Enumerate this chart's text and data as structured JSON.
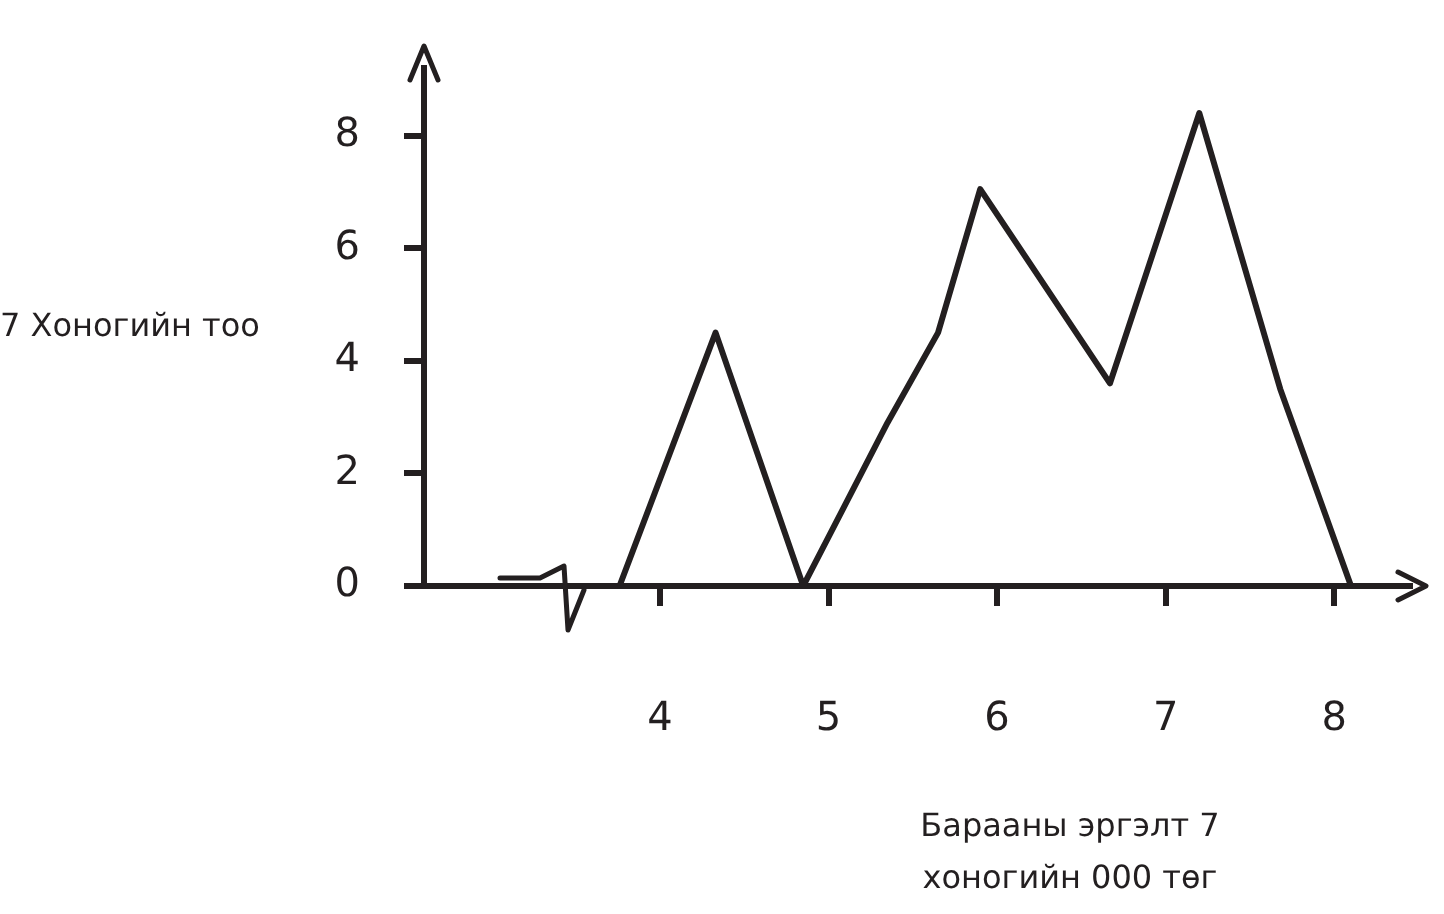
{
  "chart_data": {
    "type": "line",
    "xlabel": "Барааны эргэлт 7 хоногийн 000 төг",
    "ylabel": "7 Хоногийн тоо",
    "x": [
      3.76,
      4.33,
      4.85,
      5.35,
      5.65,
      5.9,
      6.67,
      7.2,
      7.68,
      8.1
    ],
    "series": [
      {
        "color": "#231f20",
        "values": [
          0,
          4.5,
          0,
          2.9,
          4.5,
          7.05,
          3.6,
          8.4,
          3.5,
          0
        ]
      }
    ],
    "xlim": [
      2.6,
      8.45
    ],
    "xticks": [
      4,
      5,
      6,
      7,
      8
    ],
    "ylim": [
      0,
      9.2
    ],
    "yticks": [
      0,
      2,
      4,
      6,
      8
    ],
    "grid": false,
    "legend": false,
    "marker": "none",
    "line_style": "solid"
  }
}
